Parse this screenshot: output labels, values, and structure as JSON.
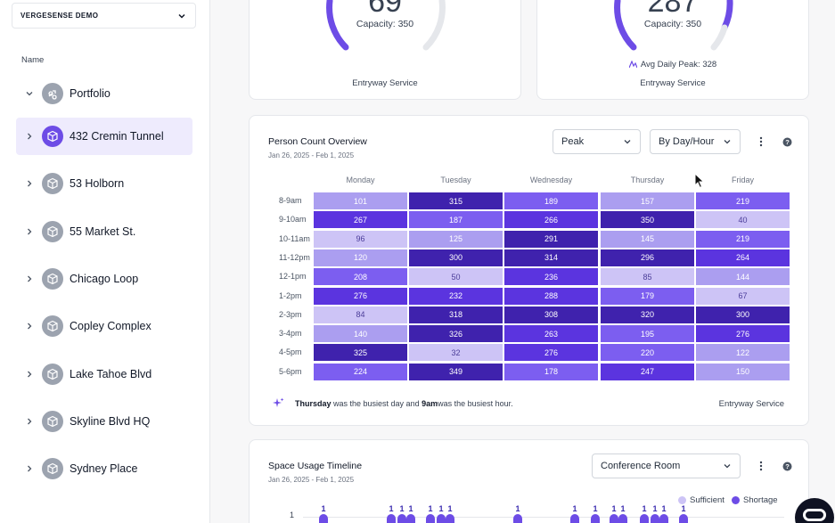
{
  "sidebar": {
    "org_name": "VERGESENSE DEMO",
    "tree_heading": "Name",
    "portfolio_label": "Portfolio",
    "items": [
      {
        "label": "432 Cremin Tunnel",
        "selected": true
      },
      {
        "label": "53 Holborn",
        "selected": false
      },
      {
        "label": "55 Market St.",
        "selected": false
      },
      {
        "label": "Chicago Loop",
        "selected": false
      },
      {
        "label": "Copley Complex",
        "selected": false
      },
      {
        "label": "Lake Tahoe Blvd",
        "selected": false
      },
      {
        "label": "Skyline Blvd HQ",
        "selected": false
      },
      {
        "label": "Sydney Place",
        "selected": false
      }
    ]
  },
  "gauges": [
    {
      "value": "69",
      "capacity_text": "Capacity: 350",
      "service": "Entryway Service",
      "fill": 0.2
    },
    {
      "value": "287",
      "capacity_text": "Capacity: 350",
      "avg_peak": "Avg Daily Peak: 328",
      "service": "Entryway Service",
      "fill": 0.82
    }
  ],
  "overview": {
    "title": "Person Count Overview",
    "date_range": "Jan 26, 2025 - Feb 1, 2025",
    "metric_select": "Peak",
    "grouping_select": "By Day/Hour",
    "service": "Entryway Service",
    "insight": {
      "day": "Thursday",
      "mid1": " was the busiest day and ",
      "hour": "9am",
      "mid2": " was the busiest hour."
    },
    "colors": {
      "lightest": "#cdc4f6",
      "light": "#ab9ef0",
      "mid": "#7c5ef0",
      "dark": "#5b34df",
      "darkest": "#3f22ad"
    }
  },
  "chart_data": {
    "type": "heatmap",
    "title": "Person Count Overview",
    "x": [
      "Monday",
      "Tuesday",
      "Wednesday",
      "Thursday",
      "Friday"
    ],
    "y": [
      "8-9am",
      "9-10am",
      "10-11am",
      "11-12pm",
      "12-1pm",
      "1-2pm",
      "2-3pm",
      "3-4pm",
      "4-5pm",
      "5-6pm"
    ],
    "values": [
      [
        101,
        315,
        189,
        157,
        219
      ],
      [
        267,
        187,
        266,
        350,
        40
      ],
      [
        96,
        125,
        291,
        145,
        219
      ],
      [
        120,
        300,
        314,
        296,
        264
      ],
      [
        208,
        50,
        236,
        85,
        144
      ],
      [
        276,
        232,
        288,
        179,
        67
      ],
      [
        84,
        318,
        308,
        320,
        300
      ],
      [
        140,
        326,
        263,
        195,
        276
      ],
      [
        325,
        32,
        276,
        220,
        122
      ],
      [
        224,
        349,
        178,
        247,
        150
      ]
    ]
  },
  "timeline": {
    "title": "Space Usage Timeline",
    "date_range": "Jan 26, 2025 - Feb 1, 2025",
    "space_select": "Conference Room",
    "legend": [
      {
        "label": "Sufficient",
        "color": "#cdc4f6"
      },
      {
        "label": "Shortage",
        "color": "#6d4ce6"
      }
    ],
    "y_tick": "1",
    "bar_label": "1",
    "marks": [
      1,
      1,
      1,
      1,
      1,
      1,
      1,
      1,
      1,
      1,
      1,
      1,
      1,
      1,
      1,
      1,
      1
    ]
  }
}
